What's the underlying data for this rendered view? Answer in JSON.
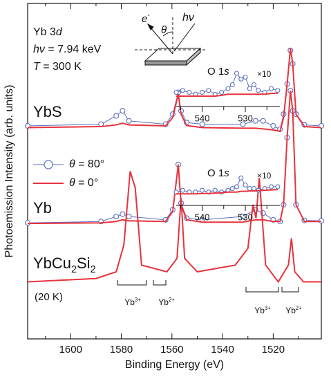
{
  "chart_data": {
    "type": "line",
    "x_label": "Binding Energy (eV)",
    "y_label": "Photoemission Intensity (arb. units)",
    "xlim": [
      1617,
      1501
    ],
    "ylim": [
      0,
      100
    ],
    "xticks": [
      1600,
      1580,
      1560,
      1540,
      1520
    ],
    "xminorticks": [
      1610,
      1590,
      1570,
      1550,
      1530,
      1510
    ],
    "annotations": {
      "edge": [
        "Yb 3",
        "d"
      ],
      "photon": [
        "h",
        "ν",
        " = 7.94 keV"
      ],
      "temp": [
        "T",
        " = 300 K"
      ],
      "sample1": "YbS",
      "sample2": "Yb",
      "sample3": [
        "YbCu",
        "2",
        "Si",
        "2"
      ],
      "sample3_temp": "(20 K)",
      "peaks": [
        [
          "Yb",
          "3+"
        ],
        [
          "Yb",
          "2+"
        ],
        [
          "Yb",
          "3+"
        ],
        [
          "Yb",
          "2+"
        ]
      ],
      "electron": [
        "e",
        "-"
      ],
      "angle": "θ",
      "light": [
        "h",
        "ν"
      ]
    },
    "series": [
      {
        "name": [
          "θ",
          " = 80°"
        ],
        "color": "#5a6fc0",
        "marker": "circle",
        "x": [
          1617,
          1588,
          1582,
          1579.5,
          1577,
          1562.5,
          1559.7,
          1557.5,
          1556.4,
          1554.2,
          1548,
          1532,
          1527,
          1524,
          1520,
          1517.3,
          1515.9,
          1514.5,
          1513.2,
          1512.3,
          1511,
          1507.7,
          1501
        ],
        "values": [
          63.5,
          64,
          66.5,
          68,
          65,
          64,
          67,
          73.5,
          68,
          64.5,
          64,
          64,
          65,
          65,
          63.5,
          62.5,
          67,
          76,
          86,
          82,
          67,
          63.8,
          63.5
        ]
      },
      {
        "name": [
          "θ",
          " = 0°"
        ],
        "color": "#e8323c",
        "x": [
          1617,
          1588,
          1582,
          1579.5,
          1577,
          1562.5,
          1559.7,
          1557.5,
          1556.4,
          1554.2,
          1548,
          1532,
          1527,
          1524,
          1520,
          1517.3,
          1515.9,
          1514.5,
          1513.2,
          1512.3,
          1511,
          1507.7,
          1501
        ],
        "values": [
          63,
          63.3,
          63.8,
          64.3,
          63.8,
          63.5,
          66,
          73,
          67,
          63.6,
          63,
          62.8,
          62.8,
          62.6,
          62.3,
          61.9,
          66,
          76,
          86.6,
          82,
          67,
          63.3,
          63
        ]
      },
      {
        "color": "#5a6fc0",
        "marker": "circle",
        "x": [
          1617,
          1588,
          1582,
          1579.5,
          1577,
          1562.5,
          1559.7,
          1557.5,
          1556.4,
          1554.2,
          1548,
          1532,
          1527,
          1524,
          1520,
          1517.3,
          1515.9,
          1514.5,
          1513.2,
          1512.3,
          1511,
          1507.7,
          1501
        ],
        "values": [
          34.6,
          35,
          36.5,
          37.2,
          36.5,
          35.5,
          38.5,
          52,
          40.5,
          36,
          35.5,
          36.5,
          38.5,
          37.5,
          35.5,
          35,
          40,
          60,
          74,
          68,
          40,
          35.3,
          35.2
        ]
      },
      {
        "color": "#e8323c",
        "x": [
          1617,
          1588,
          1582,
          1579.5,
          1577,
          1562.5,
          1559.7,
          1557.5,
          1556.4,
          1554.2,
          1548,
          1532,
          1527,
          1524,
          1520,
          1517.3,
          1515.9,
          1514.5,
          1513.2,
          1512.3,
          1511,
          1507.7,
          1501
        ],
        "values": [
          34.4,
          34.6,
          35,
          35.5,
          35.2,
          35,
          38,
          52,
          40,
          35.5,
          34.8,
          34.8,
          35.5,
          35.5,
          35,
          35,
          40,
          60,
          74,
          68,
          40,
          35,
          35
        ]
      },
      {
        "color": "#e8323c",
        "x": [
          1617,
          1590,
          1582,
          1579,
          1576.5,
          1574.5,
          1572,
          1562,
          1558,
          1556.4,
          1555,
          1550,
          1535,
          1530,
          1528,
          1526.8,
          1525.5,
          1523,
          1518,
          1514,
          1512.8,
          1511.5,
          1508,
          1501
        ],
        "values": [
          17,
          18,
          20,
          28,
          50,
          45,
          22,
          20,
          24,
          42,
          24,
          20,
          22,
          27,
          40,
          36,
          48,
          22,
          17,
          22,
          30,
          20,
          17,
          17
        ]
      }
    ],
    "insets": [
      {
        "label": [
          "O 1",
          "s"
        ],
        "scale": "×10",
        "xlim": [
          546,
          522
        ],
        "ylim": [
          0,
          10
        ],
        "xticks": [
          540,
          530
        ],
        "xminorticks": [
          545,
          535,
          525
        ],
        "series": [
          {
            "color": "#5a6fc0",
            "marker": "circle",
            "x": [
              546,
              544.5,
              543,
              541.5,
              540,
              538.5,
              537,
              535.5,
              534,
              533,
              532,
              531,
              530,
              529,
              528,
              527,
              525.5,
              524,
              522.5
            ],
            "values": [
              3,
              3.5,
              3,
              2.5,
              3,
              3.5,
              2.5,
              3,
              4,
              5,
              8,
              6.5,
              7,
              4,
              5,
              3.5,
              3,
              4,
              3.5
            ]
          },
          {
            "color": "#e8323c",
            "x": [
              546,
              544.5,
              543,
              541.5,
              540,
              538.5,
              537,
              535.5,
              534,
              533,
              532,
              531,
              530,
              529,
              528,
              527,
              525.5,
              524,
              522.5
            ],
            "values": [
              2,
              2,
              2,
              2,
              2,
              2,
              2,
              2.2,
              2.5,
              2.5,
              2.5,
              2.5,
              2.5,
              2.5,
              2.5,
              2.5,
              2.5,
              2.7,
              2.8
            ]
          }
        ]
      },
      {
        "label": [
          "O 1",
          "s"
        ],
        "scale": "×10",
        "xlim": [
          546,
          522
        ],
        "ylim": [
          0,
          10
        ],
        "xticks": [
          540,
          530
        ],
        "xminorticks": [
          545,
          535,
          525
        ],
        "series": [
          {
            "color": "#5a6fc0",
            "marker": "circle",
            "x": [
              546,
              544.5,
              543,
              541.5,
              540,
              538.5,
              537,
              535.5,
              534,
              533,
              532,
              531,
              530,
              529,
              528,
              527,
              525.5,
              524,
              522.5
            ],
            "values": [
              3,
              3.5,
              3,
              3,
              3.5,
              3,
              3.5,
              3,
              3.5,
              4,
              4.5,
              7,
              5,
              4,
              4,
              3.5,
              4,
              4.5,
              4.5
            ]
          },
          {
            "color": "#e8323c",
            "x": [
              546,
              544.5,
              543,
              541.5,
              540,
              538.5,
              537,
              535.5,
              534,
              533,
              532,
              531,
              530,
              529,
              528,
              527,
              525.5,
              524,
              522.5
            ],
            "values": [
              2.5,
              2.5,
              2.5,
              2.5,
              2.6,
              2.6,
              2.7,
              2.8,
              3,
              3,
              3,
              3.2,
              3.2,
              3.3,
              3.3,
              3.4,
              3.5,
              3.6,
              3.7
            ]
          }
        ]
      }
    ]
  }
}
